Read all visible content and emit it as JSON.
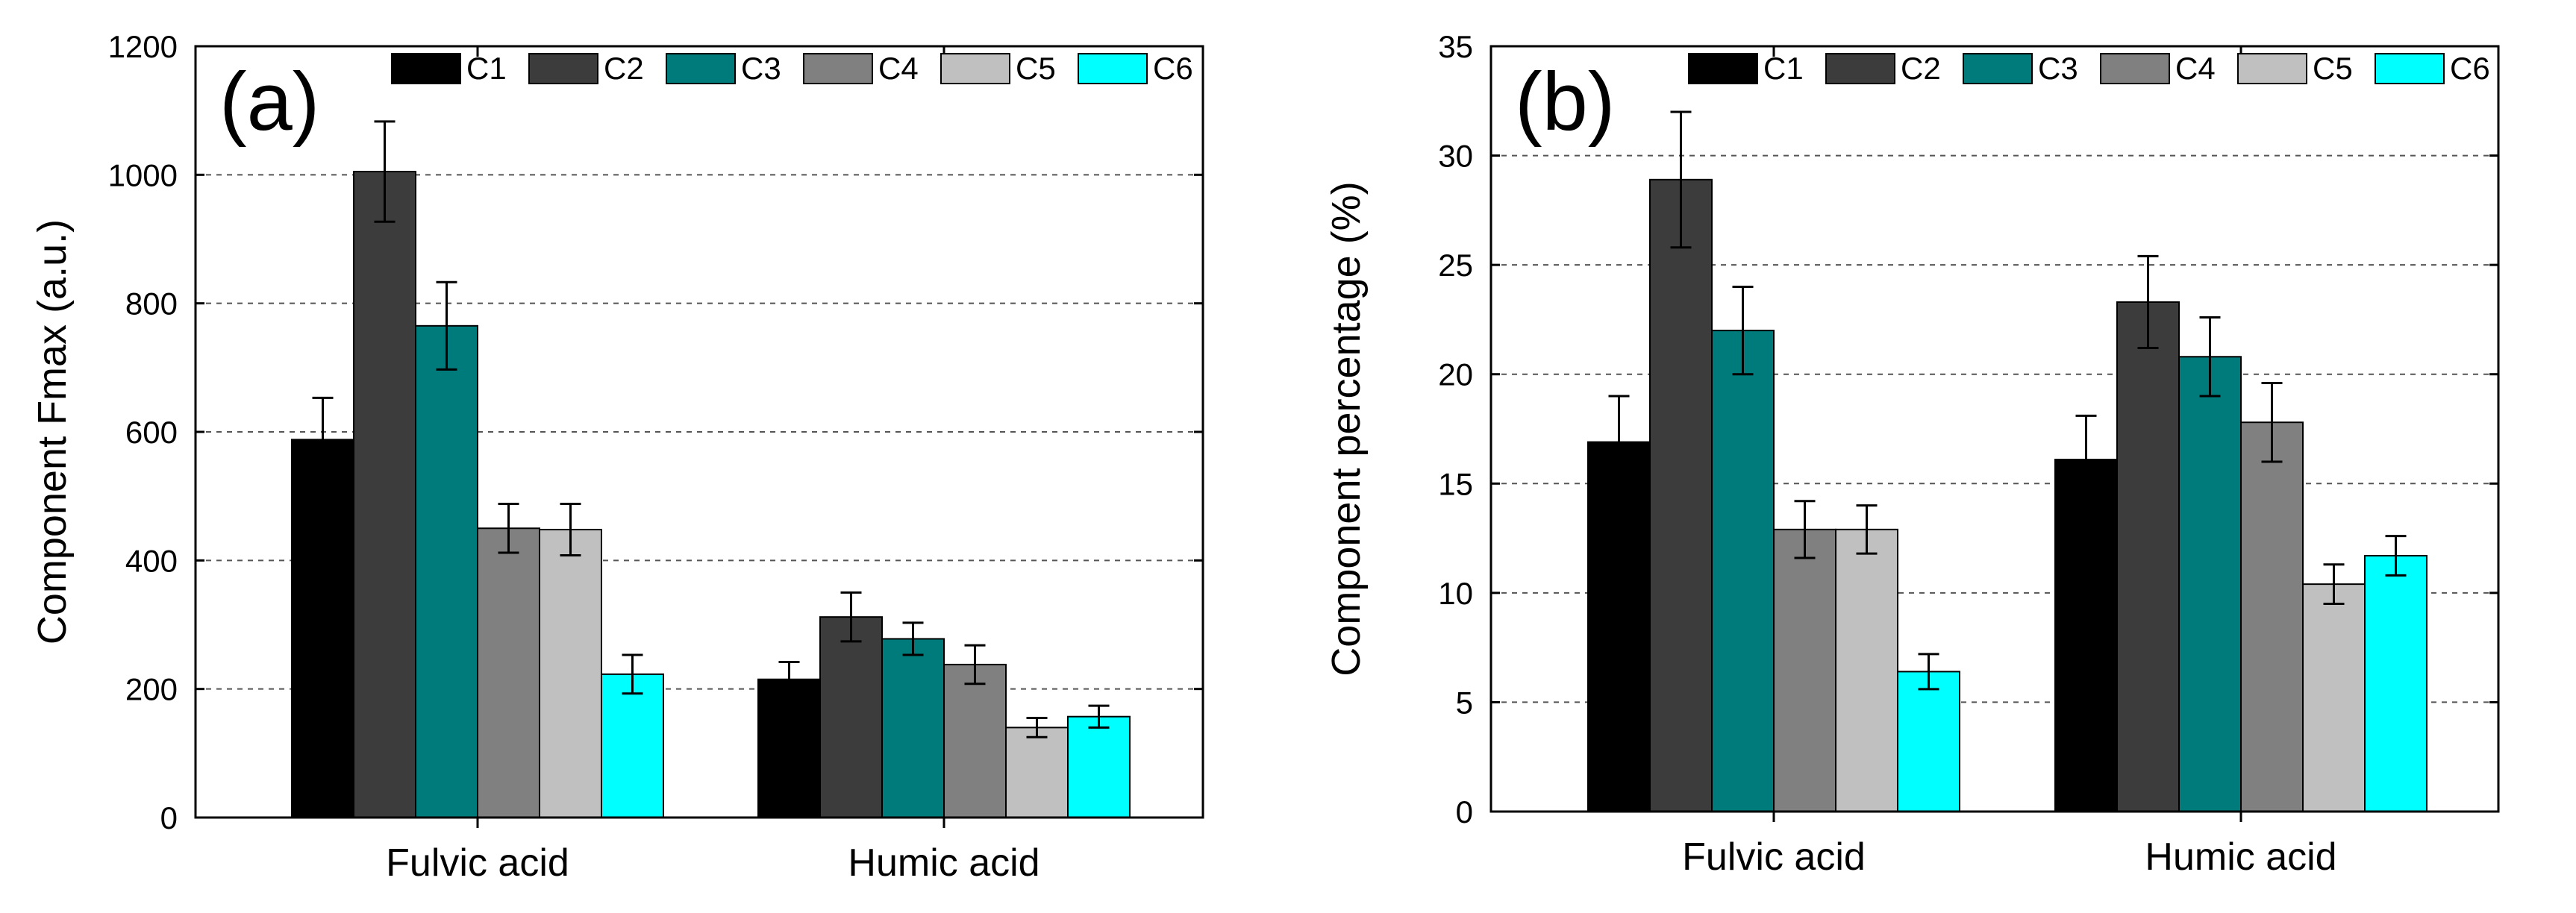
{
  "chart_data": [
    {
      "type": "bar",
      "panel_label": "(a)",
      "ylabel": "Component Fmax (a.u.)",
      "xlabel": "",
      "categories": [
        "Fulvic acid",
        "Humic acid"
      ],
      "ylim": [
        0,
        1200
      ],
      "yticks": [
        0,
        200,
        400,
        600,
        800,
        1000,
        1200
      ],
      "ytick_labels": [
        "0",
        "200",
        "400",
        "600",
        "800",
        "1000",
        "1200"
      ],
      "grid": "horizontal dashed",
      "legend_position": "top",
      "series": [
        {
          "name": "C1",
          "color": "#000000",
          "values": [
            588,
            215
          ],
          "errors": [
            65,
            27
          ]
        },
        {
          "name": "C2",
          "color": "#3c3c3c",
          "values": [
            1005,
            312
          ],
          "errors": [
            78,
            38
          ]
        },
        {
          "name": "C3",
          "color": "#007b7b",
          "values": [
            765,
            278
          ],
          "errors": [
            68,
            25
          ]
        },
        {
          "name": "C4",
          "color": "#808080",
          "values": [
            450,
            238
          ],
          "errors": [
            38,
            30
          ]
        },
        {
          "name": "C5",
          "color": "#c0c0c0",
          "values": [
            448,
            140
          ],
          "errors": [
            40,
            15
          ]
        },
        {
          "name": "C6",
          "color": "#00ffff",
          "values": [
            223,
            157
          ],
          "errors": [
            30,
            17
          ]
        }
      ]
    },
    {
      "type": "bar",
      "panel_label": "(b)",
      "ylabel": "Component percentage (%)",
      "xlabel": "",
      "categories": [
        "Fulvic acid",
        "Humic acid"
      ],
      "ylim": [
        0,
        35
      ],
      "yticks": [
        0,
        5,
        10,
        15,
        20,
        25,
        30,
        35
      ],
      "ytick_labels": [
        "0",
        "5",
        "10",
        "15",
        "20",
        "25",
        "30",
        "35"
      ],
      "grid": "horizontal dashed",
      "legend_position": "top",
      "series": [
        {
          "name": "C1",
          "color": "#000000",
          "values": [
            16.9,
            16.1
          ],
          "errors": [
            2.1,
            2.0
          ]
        },
        {
          "name": "C2",
          "color": "#3c3c3c",
          "values": [
            28.9,
            23.3
          ],
          "errors": [
            3.1,
            2.1
          ]
        },
        {
          "name": "C3",
          "color": "#007b7b",
          "values": [
            22.0,
            20.8
          ],
          "errors": [
            2.0,
            1.8
          ]
        },
        {
          "name": "C4",
          "color": "#808080",
          "values": [
            12.9,
            17.8
          ],
          "errors": [
            1.3,
            1.8
          ]
        },
        {
          "name": "C5",
          "color": "#c0c0c0",
          "values": [
            12.9,
            10.4
          ],
          "errors": [
            1.1,
            0.9
          ]
        },
        {
          "name": "C6",
          "color": "#00ffff",
          "values": [
            6.4,
            11.7
          ],
          "errors": [
            0.8,
            0.9
          ]
        }
      ]
    }
  ]
}
